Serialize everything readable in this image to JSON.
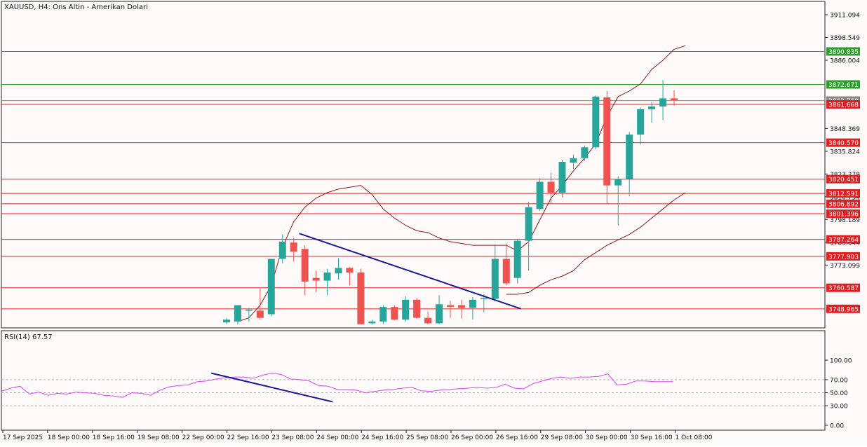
{
  "colors": {
    "background": "#fffafa",
    "grid": "#c8c8c8",
    "bull": "#26a69a",
    "bear": "#ef5350",
    "level": "#e02020",
    "level_green": "#2e9e2e",
    "bands": "#8b1a1a",
    "trendline": "#1a1a9a",
    "rsi": "#e040fb",
    "text": "#111111"
  },
  "chart_data": [
    {
      "type": "candlestick",
      "title": "XAUUSD, H4:  Ons Altin - Amerikan Dolari",
      "y_tick_labels": [
        "3911.094",
        "3898.549",
        "3886.004",
        "3848.369",
        "3835.824",
        "3823.279",
        "3810.734",
        "3798.189",
        "3785.644",
        "3773.099"
      ],
      "ylim": [
        3740.5,
        3915
      ],
      "x_tick_labels": [
        "17 Sep 2025",
        "18 Sep 00:00",
        "18 Sep 16:00",
        "19 Sep 08:00",
        "22 Sep 00:00",
        "22 Sep 16:00",
        "23 Sep 08:00",
        "24 Sep 00:00",
        "24 Sep 16:00",
        "25 Sep 08:00",
        "26 Sep 00:00",
        "26 Sep 16:00",
        "29 Sep 08:00",
        "30 Sep 00:00",
        "30 Sep 16:00",
        "1 Oct 08:00"
      ],
      "levels": [
        {
          "value": 3890.835,
          "label": "3890.835",
          "color": "green"
        },
        {
          "value": 3872.671,
          "label": "3872.671",
          "color": "green"
        },
        {
          "value": 3863.76,
          "label": "3863.760",
          "color": "gray"
        },
        {
          "value": 3861.668,
          "label": "3861.668",
          "color": "red"
        },
        {
          "value": 3840.57,
          "label": "3840.570",
          "color": "red"
        },
        {
          "value": 3820.451,
          "label": "3820.451",
          "color": "red"
        },
        {
          "value": 3812.591,
          "label": "3812.591",
          "color": "red"
        },
        {
          "value": 3806.892,
          "label": "3806.892",
          "color": "red"
        },
        {
          "value": 3801.396,
          "label": "3801.396",
          "color": "red"
        },
        {
          "value": 3787.264,
          "label": "3787.264",
          "color": "red"
        },
        {
          "value": 3777.903,
          "label": "3777.903",
          "color": "red"
        },
        {
          "value": 3760.587,
          "label": "3760.587",
          "color": "red"
        },
        {
          "value": 3748.965,
          "label": "3748.965",
          "color": "red"
        }
      ],
      "candles": [
        {
          "o": 3741.5,
          "h": 3744.0,
          "l": 3740.5,
          "c": 3743.0
        },
        {
          "o": 3742.0,
          "h": 3751.0,
          "l": 3740.5,
          "c": 3751.0
        },
        {
          "o": 3748.0,
          "h": 3749.5,
          "l": 3742.0,
          "c": 3748.5
        },
        {
          "o": 3748.0,
          "h": 3760.0,
          "l": 3743.0,
          "c": 3744.0
        },
        {
          "o": 3746.0,
          "h": 3776.5,
          "l": 3745.0,
          "c": 3776.5
        },
        {
          "o": 3776.5,
          "h": 3790.0,
          "l": 3774.0,
          "c": 3786.0
        },
        {
          "o": 3785.5,
          "h": 3788.0,
          "l": 3775.0,
          "c": 3780.5
        },
        {
          "o": 3782.0,
          "h": 3784.0,
          "l": 3756.5,
          "c": 3764.0
        },
        {
          "o": 3766.0,
          "h": 3770.0,
          "l": 3758.0,
          "c": 3764.5
        },
        {
          "o": 3764.5,
          "h": 3771.0,
          "l": 3756.5,
          "c": 3769.0
        },
        {
          "o": 3768.5,
          "h": 3777.0,
          "l": 3765.0,
          "c": 3771.5
        },
        {
          "o": 3771.5,
          "h": 3772.0,
          "l": 3762.0,
          "c": 3769.0
        },
        {
          "o": 3769.0,
          "h": 3771.0,
          "l": 3740.5,
          "c": 3740.5
        },
        {
          "o": 3741.0,
          "h": 3743.0,
          "l": 3740.5,
          "c": 3742.0
        },
        {
          "o": 3742.0,
          "h": 3751.0,
          "l": 3740.5,
          "c": 3750.0
        },
        {
          "o": 3750.0,
          "h": 3751.0,
          "l": 3742.5,
          "c": 3743.0
        },
        {
          "o": 3743.0,
          "h": 3756.0,
          "l": 3742.0,
          "c": 3754.0
        },
        {
          "o": 3754.0,
          "h": 3755.0,
          "l": 3743.5,
          "c": 3744.0
        },
        {
          "o": 3744.0,
          "h": 3747.5,
          "l": 3740.5,
          "c": 3741.0
        },
        {
          "o": 3741.0,
          "h": 3756.5,
          "l": 3740.5,
          "c": 3751.5
        },
        {
          "o": 3751.0,
          "h": 3753.5,
          "l": 3744.0,
          "c": 3750.0
        },
        {
          "o": 3751.0,
          "h": 3754.0,
          "l": 3743.5,
          "c": 3749.5
        },
        {
          "o": 3749.5,
          "h": 3755.5,
          "l": 3743.0,
          "c": 3754.0
        },
        {
          "o": 3754.5,
          "h": 3757.0,
          "l": 3747.0,
          "c": 3755.0
        },
        {
          "o": 3754.5,
          "h": 3784.5,
          "l": 3753.0,
          "c": 3776.5
        },
        {
          "o": 3776.5,
          "h": 3785.0,
          "l": 3762.0,
          "c": 3763.0
        },
        {
          "o": 3766.0,
          "h": 3787.0,
          "l": 3763.0,
          "c": 3786.5
        },
        {
          "o": 3786.5,
          "h": 3808.0,
          "l": 3770.0,
          "c": 3805.0
        },
        {
          "o": 3804.0,
          "h": 3821.0,
          "l": 3803.0,
          "c": 3819.0
        },
        {
          "o": 3819.0,
          "h": 3824.0,
          "l": 3807.0,
          "c": 3813.0
        },
        {
          "o": 3813.0,
          "h": 3831.0,
          "l": 3810.5,
          "c": 3830.0
        },
        {
          "o": 3829.5,
          "h": 3834.0,
          "l": 3826.0,
          "c": 3832.0
        },
        {
          "o": 3832.0,
          "h": 3839.0,
          "l": 3830.5,
          "c": 3838.0
        },
        {
          "o": 3838.0,
          "h": 3866.5,
          "l": 3837.0,
          "c": 3866.0
        },
        {
          "o": 3865.5,
          "h": 3869.0,
          "l": 3807.0,
          "c": 3817.0
        },
        {
          "o": 3817.0,
          "h": 3822.0,
          "l": 3795.0,
          "c": 3820.5
        },
        {
          "o": 3820.5,
          "h": 3846.5,
          "l": 3811.0,
          "c": 3845.0
        },
        {
          "o": 3845.0,
          "h": 3860.0,
          "l": 3839.5,
          "c": 3859.0
        },
        {
          "o": 3859.0,
          "h": 3863.0,
          "l": 3851.5,
          "c": 3860.5
        },
        {
          "o": 3860.5,
          "h": 3875.0,
          "l": 3853.0,
          "c": 3865.0
        },
        {
          "o": 3865.0,
          "h": 3869.5,
          "l": 3861.0,
          "c": 3864.0
        }
      ],
      "bands": {
        "upper": [
          {
            "x": 1,
            "y": 3742
          },
          {
            "x": 2,
            "y": 3744
          },
          {
            "x": 3,
            "y": 3751
          },
          {
            "x": 4,
            "y": 3762
          },
          {
            "x": 5,
            "y": 3783
          },
          {
            "x": 6,
            "y": 3797
          },
          {
            "x": 7,
            "y": 3805
          },
          {
            "x": 8,
            "y": 3810
          },
          {
            "x": 9,
            "y": 3813
          },
          {
            "x": 10,
            "y": 3815
          },
          {
            "x": 11,
            "y": 3816
          },
          {
            "x": 12,
            "y": 3817
          },
          {
            "x": 13,
            "y": 3812
          },
          {
            "x": 14,
            "y": 3804
          },
          {
            "x": 15,
            "y": 3799
          },
          {
            "x": 16,
            "y": 3795
          },
          {
            "x": 17,
            "y": 3792
          },
          {
            "x": 18,
            "y": 3791
          },
          {
            "x": 19,
            "y": 3788
          },
          {
            "x": 20,
            "y": 3786
          },
          {
            "x": 21,
            "y": 3785
          },
          {
            "x": 22,
            "y": 3784
          },
          {
            "x": 23,
            "y": 3784
          },
          {
            "x": 24,
            "y": 3784
          },
          {
            "x": 25,
            "y": 3784
          },
          {
            "x": 26,
            "y": 3781
          },
          {
            "x": 27,
            "y": 3786
          },
          {
            "x": 28,
            "y": 3798
          },
          {
            "x": 29,
            "y": 3810
          },
          {
            "x": 30,
            "y": 3817
          },
          {
            "x": 31,
            "y": 3825
          },
          {
            "x": 32,
            "y": 3832
          },
          {
            "x": 33,
            "y": 3840
          },
          {
            "x": 34,
            "y": 3855
          },
          {
            "x": 35,
            "y": 3866
          },
          {
            "x": 36,
            "y": 3869
          },
          {
            "x": 37,
            "y": 3873
          },
          {
            "x": 38,
            "y": 3881
          },
          {
            "x": 39,
            "y": 3886
          },
          {
            "x": 40,
            "y": 3892
          },
          {
            "x": 41,
            "y": 3894
          }
        ],
        "lower": [
          {
            "x": 25,
            "y": 3757
          },
          {
            "x": 26,
            "y": 3757
          },
          {
            "x": 27,
            "y": 3758
          },
          {
            "x": 28,
            "y": 3762
          },
          {
            "x": 29,
            "y": 3765
          },
          {
            "x": 30,
            "y": 3767
          },
          {
            "x": 31,
            "y": 3770
          },
          {
            "x": 32,
            "y": 3776
          },
          {
            "x": 33,
            "y": 3780
          },
          {
            "x": 34,
            "y": 3784
          },
          {
            "x": 35,
            "y": 3787
          },
          {
            "x": 36,
            "y": 3790
          },
          {
            "x": 37,
            "y": 3794
          },
          {
            "x": 38,
            "y": 3799
          },
          {
            "x": 39,
            "y": 3804
          },
          {
            "x": 40,
            "y": 3809
          },
          {
            "x": 41,
            "y": 3813
          }
        ]
      },
      "trendline": [
        {
          "x": 6.5,
          "y": 3790.5
        },
        {
          "x": 26.3,
          "y": 3749.0
        }
      ]
    },
    {
      "type": "line",
      "title": "RSI(14) 67.57",
      "y_tick_labels": [
        "100.00",
        "70.00",
        "50.00",
        "30.00",
        "0.00"
      ],
      "ylim": [
        0,
        100
      ],
      "grid_levels": [
        70,
        50,
        30
      ],
      "values": [
        52,
        57,
        60,
        48,
        51,
        46,
        49,
        48,
        51,
        50,
        49,
        46,
        45,
        43,
        50,
        49,
        46,
        54,
        59,
        61,
        62,
        67,
        68,
        71,
        73,
        74,
        74,
        72,
        77,
        80,
        78,
        71,
        70,
        68,
        61,
        60,
        55,
        55,
        54,
        50,
        52,
        54,
        55,
        57,
        58,
        53,
        52,
        54,
        55,
        56,
        57,
        58,
        57,
        58,
        63,
        57,
        56,
        64,
        68,
        72,
        74,
        72,
        74,
        74,
        75,
        79,
        62,
        63,
        68,
        68,
        67,
        67,
        67
      ],
      "trendline": [
        {
          "x": 22.5,
          "y": 80
        },
        {
          "x": 35.5,
          "y": 36
        }
      ]
    }
  ]
}
